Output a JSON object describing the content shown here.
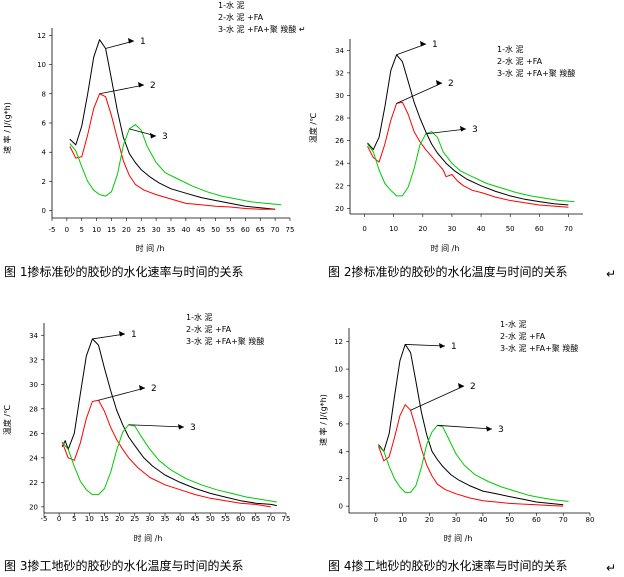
{
  "colors": {
    "cement": "#000000",
    "fa": "#ff0000",
    "fa_polymer": "#00cc00"
  },
  "chart_data": [
    {
      "type": "line",
      "caption": "图 1掺标准砂的胶砂的水化速率与时间的关系",
      "caption_mark": "",
      "xlabel": "时  间  /h",
      "ylabel": "速  率  / J/(g*h)",
      "xlim": [
        -5,
        75
      ],
      "ylim": [
        -0.5,
        12.5
      ],
      "xticks": [
        -5,
        0,
        5,
        10,
        15,
        20,
        25,
        30,
        35,
        40,
        45,
        50,
        55,
        60,
        65,
        70,
        75
      ],
      "yticks": [
        0,
        2,
        4,
        6,
        8,
        10,
        12
      ],
      "legend": [
        "1-水  泥",
        "2-水  泥 +FA",
        "3-水  泥 +FA+聚  羧酸"
      ],
      "legend_suffix": "↵",
      "series": [
        {
          "name": "1-水  泥",
          "label": "1",
          "color": "#000000",
          "x": [
            1,
            3,
            5,
            7,
            9,
            11,
            13,
            15,
            17,
            19,
            21,
            23,
            25,
            28,
            31,
            35,
            40,
            45,
            50,
            55,
            60,
            65,
            70
          ],
          "y": [
            4.9,
            4.5,
            5.8,
            8.0,
            10.5,
            11.7,
            11.1,
            9.0,
            6.8,
            5.0,
            3.9,
            3.3,
            2.8,
            2.3,
            1.9,
            1.5,
            1.2,
            0.9,
            0.7,
            0.5,
            0.3,
            0.2,
            0.1
          ]
        },
        {
          "name": "2-水  泥 +FA",
          "label": "2",
          "color": "#ff0000",
          "x": [
            1,
            3,
            5,
            7,
            9,
            11,
            13,
            15,
            17,
            19,
            21,
            23,
            26,
            30,
            35,
            40,
            45,
            50,
            55,
            60,
            65,
            70
          ],
          "y": [
            4.4,
            3.6,
            3.7,
            5.2,
            7.0,
            8.0,
            7.8,
            6.5,
            4.9,
            3.4,
            2.4,
            1.8,
            1.4,
            1.1,
            0.8,
            0.5,
            0.4,
            0.3,
            0.25,
            0.15,
            0.1,
            0.1
          ]
        },
        {
          "name": "3-水  泥 +FA+聚  羧酸",
          "label": "3",
          "color": "#00cc00",
          "x": [
            1,
            3,
            5,
            7,
            9,
            11,
            13,
            15,
            17,
            19,
            21,
            23,
            25,
            27,
            30,
            33,
            37,
            42,
            47,
            52,
            57,
            62,
            67,
            72
          ],
          "y": [
            4.6,
            4.1,
            3.0,
            2.0,
            1.4,
            1.1,
            1.0,
            1.3,
            2.5,
            4.5,
            5.6,
            5.9,
            5.5,
            4.4,
            3.3,
            2.6,
            2.2,
            1.7,
            1.3,
            1.0,
            0.8,
            0.6,
            0.5,
            0.4
          ]
        }
      ]
    },
    {
      "type": "line",
      "caption": "图 2掺标准砂的胶砂的水化温度与时间的关系",
      "caption_mark": "↵",
      "xlabel": "时  间  /h",
      "ylabel": "温度 /℃",
      "xlim": [
        -5,
        75
      ],
      "ylim": [
        19.5,
        35
      ],
      "xticks": [
        0,
        10,
        20,
        30,
        40,
        50,
        60,
        70
      ],
      "yticks": [
        20,
        22,
        24,
        26,
        28,
        30,
        32,
        34
      ],
      "legend": [
        "1-水  泥",
        "2-水  泥 +FA",
        "3-水  泥 +FA+聚  羧酸"
      ],
      "legend_suffix": "",
      "series": [
        {
          "name": "1-水  泥",
          "label": "1",
          "color": "#000000",
          "x": [
            1,
            3,
            5,
            7,
            9,
            11,
            13,
            15,
            17,
            19,
            21,
            23,
            25,
            28,
            31,
            35,
            40,
            45,
            50,
            55,
            60,
            65,
            70
          ],
          "y": [
            25.8,
            25.2,
            26.3,
            29.0,
            32.2,
            33.6,
            33.0,
            31.2,
            29.4,
            28.0,
            26.8,
            25.7,
            24.9,
            24.0,
            23.3,
            22.6,
            22.0,
            21.5,
            21.1,
            20.8,
            20.6,
            20.4,
            20.3
          ]
        },
        {
          "name": "2-水  泥 +FA",
          "label": "2",
          "color": "#ff0000",
          "x": [
            1,
            3,
            5,
            7,
            9,
            11,
            13,
            15,
            17,
            19,
            21,
            23,
            25,
            27,
            28,
            30,
            32,
            34,
            37,
            40,
            45,
            50,
            55,
            60,
            65,
            70
          ],
          "y": [
            25.5,
            24.5,
            24.1,
            25.7,
            27.8,
            29.3,
            29.4,
            28.3,
            26.8,
            25.9,
            25.2,
            24.6,
            24.0,
            23.4,
            22.8,
            23.0,
            22.4,
            22.0,
            21.6,
            21.4,
            21.0,
            20.7,
            20.5,
            20.3,
            20.2,
            20.1
          ]
        },
        {
          "name": "3-水  泥 +FA+聚  羧酸",
          "label": "3",
          "color": "#00cc00",
          "x": [
            1,
            3,
            5,
            7,
            9,
            11,
            13,
            15,
            17,
            19,
            21,
            23,
            25,
            27,
            30,
            33,
            37,
            42,
            47,
            52,
            57,
            62,
            67,
            72
          ],
          "y": [
            25.7,
            25.0,
            23.4,
            22.2,
            21.6,
            21.1,
            21.1,
            21.9,
            23.5,
            25.6,
            26.6,
            26.8,
            26.3,
            25.0,
            24.0,
            23.3,
            22.8,
            22.2,
            21.8,
            21.4,
            21.1,
            20.9,
            20.7,
            20.6
          ]
        }
      ]
    },
    {
      "type": "line",
      "caption": "图 3掺工地砂的胶砂的水化温度与时间的关系",
      "caption_mark": "",
      "xlabel": "时  间  /h",
      "ylabel": "温度 /℃",
      "xlim": [
        -5,
        75
      ],
      "ylim": [
        19.5,
        35
      ],
      "xticks": [
        -5,
        0,
        5,
        10,
        15,
        20,
        25,
        30,
        35,
        40,
        45,
        50,
        55,
        60,
        65,
        70,
        75
      ],
      "yticks": [
        20,
        22,
        24,
        26,
        28,
        30,
        32,
        34
      ],
      "legend": [
        "1-水  泥",
        "2-水  泥 +FA",
        "3-水  泥 +FA+聚  羧酸"
      ],
      "legend_suffix": "",
      "series": [
        {
          "name": "1-水  泥",
          "label": "1",
          "color": "#000000",
          "x": [
            1,
            2,
            3,
            5,
            7,
            9,
            11,
            13,
            15,
            17,
            19,
            21,
            23,
            25,
            28,
            31,
            35,
            40,
            45,
            50,
            55,
            60,
            65,
            70,
            72
          ],
          "y": [
            24.9,
            25.4,
            24.7,
            26.0,
            29.2,
            32.3,
            33.7,
            33.2,
            31.3,
            29.5,
            27.9,
            26.7,
            25.7,
            25.0,
            24.0,
            23.3,
            22.6,
            22.0,
            21.5,
            21.1,
            20.8,
            20.5,
            20.3,
            20.2,
            20.1
          ]
        },
        {
          "name": "2-水  泥 +FA",
          "label": "2",
          "color": "#ff0000",
          "x": [
            1,
            3,
            5,
            7,
            9,
            11,
            13,
            15,
            17,
            19,
            21,
            23,
            26,
            30,
            35,
            40,
            45,
            50,
            55,
            60,
            65,
            70
          ],
          "y": [
            25.3,
            24.0,
            23.8,
            25.2,
            27.2,
            28.6,
            28.7,
            27.8,
            26.5,
            25.5,
            24.7,
            24.0,
            23.2,
            22.4,
            21.8,
            21.4,
            21.0,
            20.7,
            20.5,
            20.3,
            20.2,
            20.0
          ]
        },
        {
          "name": "3-水  泥 +FA+聚  羧酸",
          "label": "3",
          "color": "#00cc00",
          "x": [
            1,
            3,
            5,
            7,
            9,
            11,
            13,
            15,
            17,
            19,
            21,
            23,
            25,
            27,
            30,
            33,
            37,
            42,
            47,
            52,
            57,
            62,
            67,
            72
          ],
          "y": [
            25.3,
            24.7,
            23.3,
            22.1,
            21.4,
            21.0,
            21.0,
            21.5,
            22.8,
            24.6,
            26.1,
            26.7,
            26.6,
            25.8,
            24.7,
            23.8,
            23.0,
            22.3,
            21.8,
            21.4,
            21.1,
            20.8,
            20.6,
            20.4
          ]
        }
      ]
    },
    {
      "type": "line",
      "caption": "图 4掺工地砂的胶砂的水化速率与时间的关系",
      "caption_mark": "↵",
      "xlabel": "时  间  /h",
      "ylabel": "速  率  / J/(g*h)",
      "xlim": [
        -10,
        80
      ],
      "ylim": [
        -0.5,
        13
      ],
      "xticks": [
        0,
        10,
        20,
        30,
        40,
        50,
        60,
        70,
        80
      ],
      "yticks": [
        0,
        2,
        4,
        6,
        8,
        10,
        12
      ],
      "legend": [
        "1-水  泥",
        "2-水  泥 +FA",
        "3-水  泥 +FA+聚  羧酸"
      ],
      "legend_suffix": "",
      "series": [
        {
          "name": "1-水  泥",
          "label": "1",
          "color": "#000000",
          "x": [
            1,
            3,
            5,
            7,
            9,
            11,
            13,
            15,
            17,
            19,
            21,
            23,
            25,
            28,
            31,
            35,
            40,
            45,
            50,
            55,
            60,
            65,
            70
          ],
          "y": [
            4.5,
            4.0,
            5.3,
            8.0,
            10.6,
            11.8,
            11.2,
            9.1,
            6.9,
            5.2,
            4.0,
            3.4,
            2.9,
            2.3,
            1.9,
            1.5,
            1.1,
            0.9,
            0.7,
            0.5,
            0.3,
            0.2,
            0.1
          ]
        },
        {
          "name": "2-水  泥 +FA",
          "label": "2",
          "color": "#ff0000",
          "x": [
            1,
            3,
            5,
            7,
            9,
            11,
            13,
            15,
            17,
            19,
            21,
            23,
            26,
            30,
            35,
            40,
            45,
            50,
            55,
            60,
            65,
            70
          ],
          "y": [
            4.4,
            3.3,
            3.6,
            5.0,
            6.6,
            7.4,
            7.0,
            5.7,
            4.2,
            3.0,
            2.2,
            1.6,
            1.2,
            0.9,
            0.6,
            0.4,
            0.3,
            0.2,
            0.15,
            0.1,
            0.05,
            0.0
          ]
        },
        {
          "name": "3-水  泥 +FA+聚  羧酸",
          "label": "3",
          "color": "#00cc00",
          "x": [
            1,
            3,
            5,
            7,
            9,
            11,
            13,
            15,
            17,
            19,
            21,
            23,
            25,
            27,
            30,
            33,
            37,
            42,
            47,
            52,
            57,
            62,
            67,
            72
          ],
          "y": [
            4.4,
            4.0,
            2.9,
            2.0,
            1.4,
            1.0,
            1.0,
            1.5,
            2.8,
            4.5,
            5.4,
            5.9,
            5.8,
            5.0,
            3.8,
            3.0,
            2.3,
            1.8,
            1.4,
            1.1,
            0.8,
            0.6,
            0.45,
            0.35
          ]
        }
      ]
    }
  ]
}
